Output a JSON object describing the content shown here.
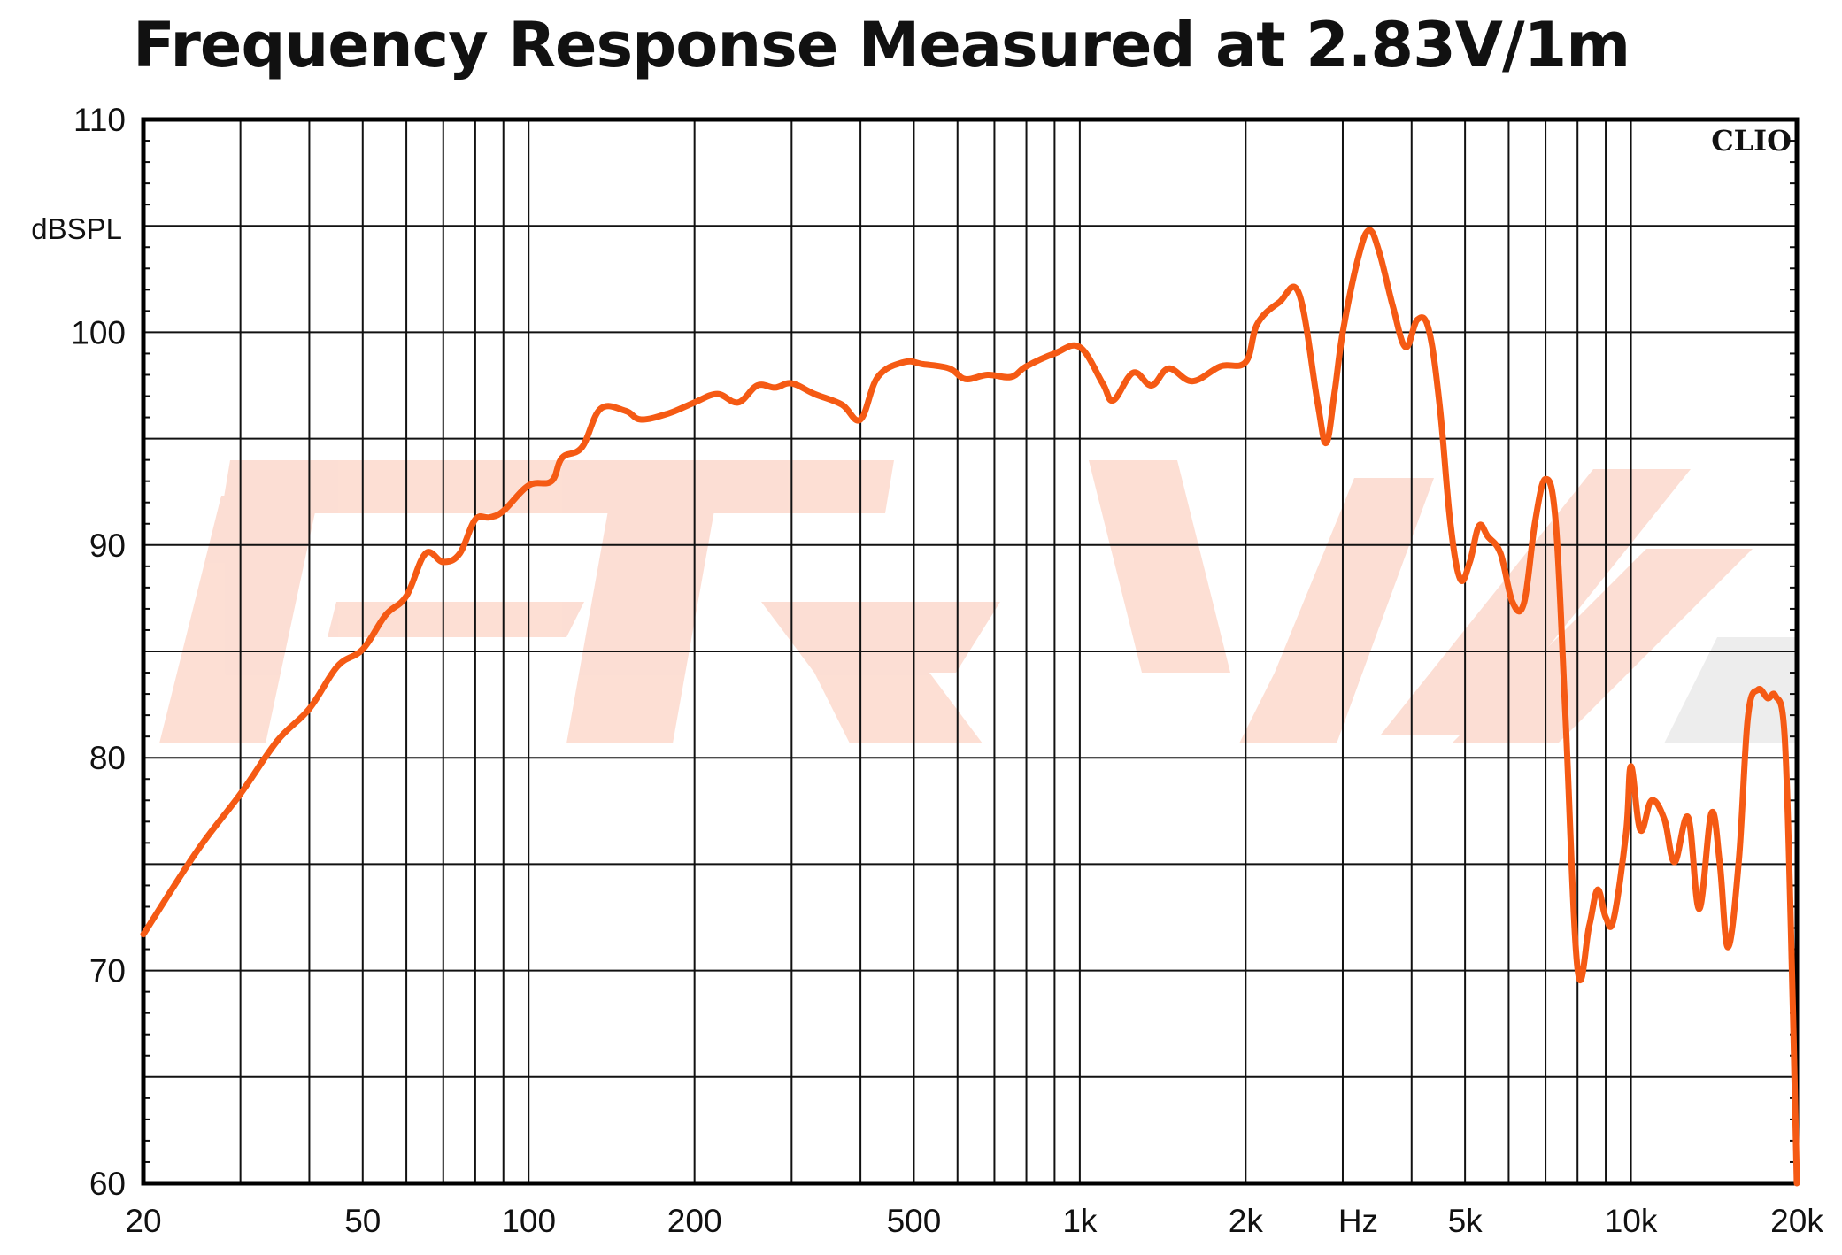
{
  "chart_data": {
    "type": "line",
    "title": "Frequency Response Measured at 2.83V/1m",
    "ylabel": "dBSPL",
    "xlabel": "Hz",
    "watermark_label": "CLIO",
    "x_scale": "log",
    "xlim": [
      20,
      20000
    ],
    "ylim": [
      60,
      110
    ],
    "x_ticks": [
      {
        "value": 20,
        "label": "20"
      },
      {
        "value": 50,
        "label": "50"
      },
      {
        "value": 100,
        "label": "100"
      },
      {
        "value": 200,
        "label": "200"
      },
      {
        "value": 500,
        "label": "500"
      },
      {
        "value": 1000,
        "label": "1k"
      },
      {
        "value": 2000,
        "label": "2k"
      },
      {
        "value": 5000,
        "label": "5k"
      },
      {
        "value": 10000,
        "label": "10k"
      },
      {
        "value": 20000,
        "label": "20k"
      }
    ],
    "y_ticks": [
      {
        "value": 60,
        "label": "60"
      },
      {
        "value": 70,
        "label": "70"
      },
      {
        "value": 80,
        "label": "80"
      },
      {
        "value": 90,
        "label": "90"
      },
      {
        "value": 100,
        "label": "100"
      },
      {
        "value": 110,
        "label": "110"
      }
    ],
    "grid": true,
    "line_color": "#f55a14",
    "series": [
      {
        "name": "",
        "points": [
          [
            20,
            71.7
          ],
          [
            25,
            75.6
          ],
          [
            30,
            78.3
          ],
          [
            35,
            80.8
          ],
          [
            40,
            82.3
          ],
          [
            45,
            84.3
          ],
          [
            50,
            85.1
          ],
          [
            55,
            86.7
          ],
          [
            60,
            87.6
          ],
          [
            65,
            89.6
          ],
          [
            70,
            89.2
          ],
          [
            75,
            89.6
          ],
          [
            80,
            91.2
          ],
          [
            85,
            91.3
          ],
          [
            90,
            91.6
          ],
          [
            100,
            92.8
          ],
          [
            110,
            93.0
          ],
          [
            115,
            94.1
          ],
          [
            125,
            94.6
          ],
          [
            135,
            96.4
          ],
          [
            150,
            96.3
          ],
          [
            160,
            95.9
          ],
          [
            180,
            96.2
          ],
          [
            200,
            96.7
          ],
          [
            220,
            97.1
          ],
          [
            240,
            96.7
          ],
          [
            260,
            97.5
          ],
          [
            280,
            97.4
          ],
          [
            300,
            97.6
          ],
          [
            330,
            97.1
          ],
          [
            370,
            96.6
          ],
          [
            400,
            95.9
          ],
          [
            430,
            97.9
          ],
          [
            480,
            98.6
          ],
          [
            520,
            98.5
          ],
          [
            580,
            98.3
          ],
          [
            620,
            97.8
          ],
          [
            680,
            98.0
          ],
          [
            750,
            97.9
          ],
          [
            800,
            98.4
          ],
          [
            900,
            99.0
          ],
          [
            1000,
            99.3
          ],
          [
            1100,
            97.6
          ],
          [
            1150,
            96.8
          ],
          [
            1250,
            98.1
          ],
          [
            1350,
            97.5
          ],
          [
            1450,
            98.3
          ],
          [
            1600,
            97.7
          ],
          [
            1800,
            98.4
          ],
          [
            2000,
            98.6
          ],
          [
            2100,
            100.4
          ],
          [
            2300,
            101.4
          ],
          [
            2500,
            101.8
          ],
          [
            2700,
            96.7
          ],
          [
            2800,
            94.8
          ],
          [
            2900,
            97.2
          ],
          [
            3000,
            100.0
          ],
          [
            3200,
            103.5
          ],
          [
            3350,
            104.8
          ],
          [
            3500,
            103.7
          ],
          [
            3700,
            101.2
          ],
          [
            3900,
            99.3
          ],
          [
            4100,
            100.6
          ],
          [
            4300,
            100.1
          ],
          [
            4500,
            96.5
          ],
          [
            4700,
            91.1
          ],
          [
            4900,
            88.4
          ],
          [
            5100,
            89.2
          ],
          [
            5300,
            90.9
          ],
          [
            5500,
            90.4
          ],
          [
            5800,
            89.6
          ],
          [
            6100,
            87.3
          ],
          [
            6400,
            87.3
          ],
          [
            6700,
            91.1
          ],
          [
            7000,
            93.1
          ],
          [
            7300,
            91.1
          ],
          [
            7600,
            82.2
          ],
          [
            8000,
            70.1
          ],
          [
            8400,
            72.1
          ],
          [
            8700,
            73.8
          ],
          [
            9000,
            72.5
          ],
          [
            9300,
            72.4
          ],
          [
            9800,
            76.5
          ],
          [
            10000,
            79.6
          ],
          [
            10400,
            76.6
          ],
          [
            10900,
            78.0
          ],
          [
            11500,
            77.1
          ],
          [
            12000,
            75.1
          ],
          [
            12700,
            77.2
          ],
          [
            13300,
            72.9
          ],
          [
            14000,
            77.4
          ],
          [
            14500,
            75.0
          ],
          [
            15000,
            71.1
          ],
          [
            15700,
            75.2
          ],
          [
            16300,
            81.9
          ],
          [
            17000,
            83.2
          ],
          [
            17700,
            82.8
          ],
          [
            18300,
            82.9
          ],
          [
            19000,
            81.1
          ],
          [
            19500,
            72.1
          ],
          [
            20000,
            60.0
          ]
        ]
      }
    ]
  }
}
